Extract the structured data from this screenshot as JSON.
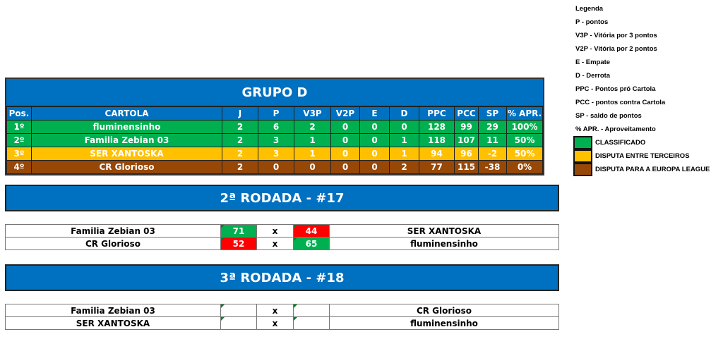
{
  "group": {
    "title": "GRUPO D",
    "headers": [
      "Pos.",
      "CARTOLA",
      "J",
      "P",
      "V3P",
      "V2P",
      "E",
      "D",
      "PPC",
      "PCC",
      "SP",
      "% APR."
    ],
    "rows": [
      [
        "1º",
        "fluminensinho",
        "2",
        "6",
        "2",
        "0",
        "0",
        "0",
        "128",
        "99",
        "29",
        "100%"
      ],
      [
        "2º",
        "Familia Zebian 03",
        "2",
        "3",
        "1",
        "0",
        "0",
        "1",
        "118",
        "107",
        "11",
        "50%"
      ],
      [
        "3º",
        "SER XANTOSKA",
        "2",
        "3",
        "1",
        "0",
        "0",
        "1",
        "94",
        "96",
        "-2",
        "50%"
      ],
      [
        "4º",
        "CR Glorioso",
        "2",
        "0",
        "0",
        "0",
        "0",
        "2",
        "77",
        "115",
        "-38",
        "0%"
      ]
    ]
  },
  "rounds": [
    {
      "title": "2ª RODADA - #17",
      "matches": [
        {
          "home": "Familia Zebian 03",
          "home_score": "71",
          "sep": "x",
          "away_score": "44",
          "away": "SER XANTOSKA",
          "home_result": "win",
          "away_result": "lose"
        },
        {
          "home": "CR Glorioso",
          "home_score": "52",
          "sep": "x",
          "away_score": "65",
          "away": "fluminensinho",
          "home_result": "lose",
          "away_result": "win"
        }
      ]
    },
    {
      "title": "3ª RODADA - #18",
      "matches": [
        {
          "home": "Familia Zebian 03",
          "home_score": "",
          "sep": "x",
          "away_score": "",
          "away": "CR Glorioso",
          "home_result": "",
          "away_result": ""
        },
        {
          "home": "SER XANTOSKA",
          "home_score": "",
          "sep": "x",
          "away_score": "",
          "away": "fluminensinho",
          "home_result": "",
          "away_result": ""
        }
      ]
    }
  ],
  "legend": {
    "lines": [
      "Legenda",
      "P - pontos",
      "V3P - Vitória por 3 pontos",
      "V2P - Vitória por 2 pontos",
      "E - Empate",
      "D - Derrota",
      "PPC - Pontos pró Cartola",
      "PCC - pontos contra Cartola",
      "SP - saldo de pontos",
      "% APR. - Aproveitamento"
    ],
    "swatches": [
      {
        "label": "CLASSIFICADO",
        "color": "#00b050"
      },
      {
        "label": "DISPUTA ENTRE TERCEIROS",
        "color": "#ffc000"
      },
      {
        "label": "DISPUTA PARA A EUROPA LEAGUE",
        "color": "#974706"
      }
    ]
  }
}
